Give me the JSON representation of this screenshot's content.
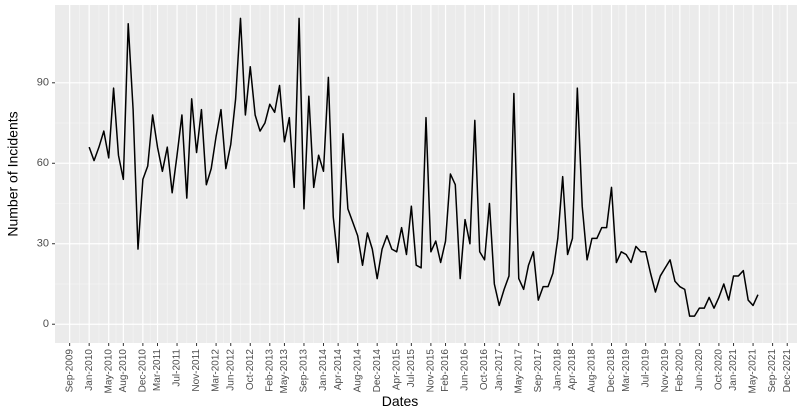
{
  "chart_data": {
    "type": "line",
    "xlabel": "Dates",
    "ylabel": "Number of Incidents",
    "x": [
      "Jan-2010",
      "Feb-2010",
      "Mar-2010",
      "Apr-2010",
      "May-2010",
      "Jun-2010",
      "Jul-2010",
      "Aug-2010",
      "Sep-2010",
      "Oct-2010",
      "Nov-2010",
      "Dec-2010",
      "Jan-2011",
      "Feb-2011",
      "Mar-2011",
      "Apr-2011",
      "May-2011",
      "Jun-2011",
      "Jul-2011",
      "Aug-2011",
      "Sep-2011",
      "Oct-2011",
      "Nov-2011",
      "Dec-2011",
      "Jan-2012",
      "Feb-2012",
      "Mar-2012",
      "Apr-2012",
      "May-2012",
      "Jun-2012",
      "Jul-2012",
      "Aug-2012",
      "Sep-2012",
      "Oct-2012",
      "Nov-2012",
      "Dec-2012",
      "Jan-2013",
      "Feb-2013",
      "Mar-2013",
      "Apr-2013",
      "May-2013",
      "Jun-2013",
      "Jul-2013",
      "Aug-2013",
      "Sep-2013",
      "Oct-2013",
      "Nov-2013",
      "Dec-2013",
      "Jan-2014",
      "Feb-2014",
      "Mar-2014",
      "Apr-2014",
      "May-2014",
      "Jun-2014",
      "Jul-2014",
      "Aug-2014",
      "Sep-2014",
      "Oct-2014",
      "Nov-2014",
      "Dec-2014",
      "Jan-2015",
      "Feb-2015",
      "Mar-2015",
      "Apr-2015",
      "May-2015",
      "Jun-2015",
      "Jul-2015",
      "Aug-2015",
      "Sep-2015",
      "Oct-2015",
      "Nov-2015",
      "Dec-2015",
      "Jan-2016",
      "Feb-2016",
      "Mar-2016",
      "Apr-2016",
      "May-2016",
      "Jun-2016",
      "Jul-2016",
      "Aug-2016",
      "Sep-2016",
      "Oct-2016",
      "Nov-2016",
      "Dec-2016",
      "Jan-2017",
      "Feb-2017",
      "Mar-2017",
      "Apr-2017",
      "May-2017",
      "Jun-2017",
      "Jul-2017",
      "Aug-2017",
      "Sep-2017",
      "Oct-2017",
      "Nov-2017",
      "Dec-2017",
      "Jan-2018",
      "Feb-2018",
      "Mar-2018",
      "Apr-2018",
      "May-2018",
      "Jun-2018",
      "Jul-2018",
      "Aug-2018",
      "Sep-2018",
      "Oct-2018",
      "Nov-2018",
      "Dec-2018",
      "Jan-2019",
      "Feb-2019",
      "Mar-2019",
      "Apr-2019",
      "May-2019",
      "Jun-2019",
      "Jul-2019",
      "Aug-2019",
      "Sep-2019",
      "Oct-2019",
      "Nov-2019",
      "Dec-2019",
      "Jan-2020",
      "Feb-2020",
      "Mar-2020",
      "Apr-2020",
      "May-2020",
      "Jun-2020",
      "Jul-2020",
      "Aug-2020",
      "Sep-2020",
      "Oct-2020",
      "Nov-2020",
      "Dec-2020",
      "Jan-2021",
      "Feb-2021",
      "Mar-2021",
      "Apr-2021",
      "May-2021",
      "Jun-2021"
    ],
    "values": [
      66,
      61,
      66,
      72,
      62,
      88,
      63,
      54,
      112,
      80,
      28,
      54,
      59,
      78,
      66,
      57,
      66,
      49,
      63,
      78,
      47,
      84,
      64,
      80,
      52,
      58,
      70,
      80,
      58,
      67,
      84,
      114,
      78,
      96,
      78,
      72,
      75,
      82,
      79,
      89,
      68,
      77,
      51,
      114,
      43,
      85,
      51,
      63,
      57,
      92,
      40,
      23,
      71,
      43,
      38,
      33,
      22,
      34,
      28,
      17,
      28,
      33,
      28,
      27,
      36,
      26,
      44,
      22,
      21,
      77,
      27,
      31,
      23,
      31,
      56,
      52,
      17,
      39,
      30,
      76,
      27,
      24,
      45,
      15,
      7,
      13,
      18,
      86,
      17,
      13,
      22,
      27,
      9,
      14,
      14,
      19,
      32,
      55,
      26,
      32,
      88,
      44,
      24,
      32,
      32,
      36,
      36,
      51,
      23,
      27,
      26,
      23,
      29,
      27,
      27,
      19,
      12,
      18,
      21,
      24,
      16,
      14,
      13,
      3,
      3,
      6,
      6,
      10,
      6,
      10,
      15,
      9,
      18,
      18,
      20,
      9,
      7,
      11
    ],
    "color": "#000000",
    "xlim": [
      "Jun-2009",
      "Feb-2022"
    ],
    "xticks": [
      "Sep-2009",
      "Jan-2010",
      "May-2010",
      "Aug-2010",
      "Dec-2010",
      "Mar-2011",
      "Jul-2011",
      "Nov-2011",
      "Mar-2012",
      "Jun-2012",
      "Oct-2012",
      "Feb-2013",
      "May-2013",
      "Sep-2013",
      "Jan-2014",
      "Apr-2014",
      "Aug-2014",
      "Dec-2014",
      "Apr-2015",
      "Jul-2015",
      "Nov-2015",
      "Feb-2016",
      "Jun-2016",
      "Oct-2016",
      "Jan-2017",
      "May-2017",
      "Sep-2017",
      "Jan-2018",
      "Apr-2018",
      "Aug-2018",
      "Dec-2018",
      "Mar-2019",
      "Jul-2019",
      "Nov-2019",
      "Feb-2020",
      "Jun-2020",
      "Oct-2020",
      "Jan-2021",
      "May-2021",
      "Sep-2021",
      "Dec-2021"
    ],
    "ylim": [
      -7,
      119
    ],
    "yticks": [
      0,
      30,
      60,
      90
    ],
    "grid": true
  }
}
